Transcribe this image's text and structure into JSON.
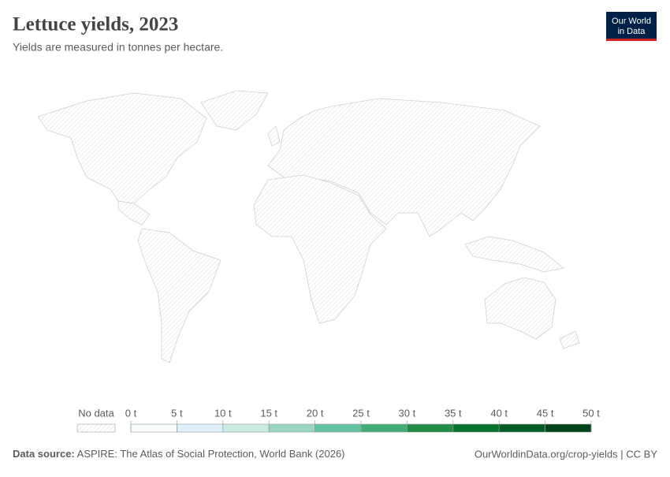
{
  "header": {
    "title": "Lettuce yields, 2023",
    "subtitle": "Yields are measured in tonnes per hectare.",
    "logo": [
      "Our World",
      "in Data"
    ]
  },
  "legend": {
    "no_data": "No data",
    "ticks": [
      {
        "value": 0,
        "label": "0 t"
      },
      {
        "value": 5,
        "label": "5 t"
      },
      {
        "value": 10,
        "label": "10 t"
      },
      {
        "value": 15,
        "label": "15 t"
      },
      {
        "value": 20,
        "label": "20 t"
      },
      {
        "value": 25,
        "label": "25 t"
      },
      {
        "value": 30,
        "label": "30 t"
      },
      {
        "value": 35,
        "label": "35 t"
      },
      {
        "value": 40,
        "label": "40 t"
      },
      {
        "value": 45,
        "label": "45 t"
      },
      {
        "value": 50,
        "label": "50 t"
      }
    ],
    "colors": [
      "#f7fcfa",
      "#deeef8",
      "#c9ebe1",
      "#98d6c3",
      "#66c2a4",
      "#41ae76",
      "#238b45",
      "#03732f",
      "#005e24",
      "#00441b"
    ]
  },
  "footer": {
    "source_label": "Data source:",
    "source": "ASPIRE: The Atlas of Social Protection, World Bank (2026)",
    "url": "OurWorldinData.org/crop-yields | CC BY"
  }
}
